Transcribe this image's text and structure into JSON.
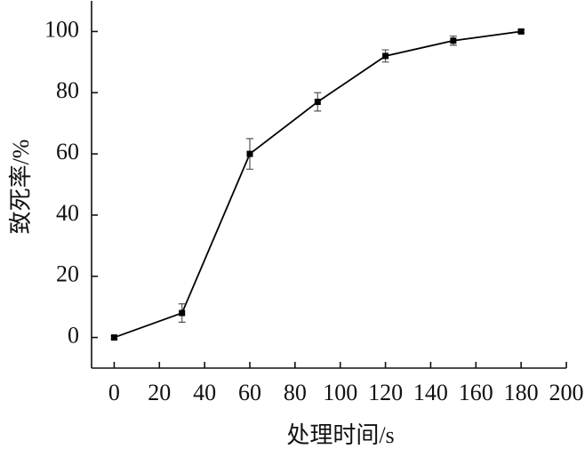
{
  "chart_data": {
    "type": "line",
    "xlabel": "处理时间/s",
    "ylabel": "致死率/%",
    "x": [
      0,
      30,
      60,
      90,
      120,
      150,
      180
    ],
    "series": [
      {
        "name": "致死率",
        "color": "#000000",
        "values": [
          0,
          8,
          60,
          77,
          92,
          97,
          100
        ],
        "errors": [
          0.5,
          3,
          5,
          3,
          2,
          1.5,
          0.5
        ]
      }
    ],
    "xlim": [
      -10,
      200
    ],
    "ylim": [
      -10,
      110
    ],
    "xticks": [
      0,
      20,
      40,
      60,
      80,
      100,
      120,
      140,
      160,
      180,
      200
    ],
    "yticks": [
      0,
      20,
      40,
      60,
      80,
      100
    ],
    "grid": false,
    "legend": false
  }
}
